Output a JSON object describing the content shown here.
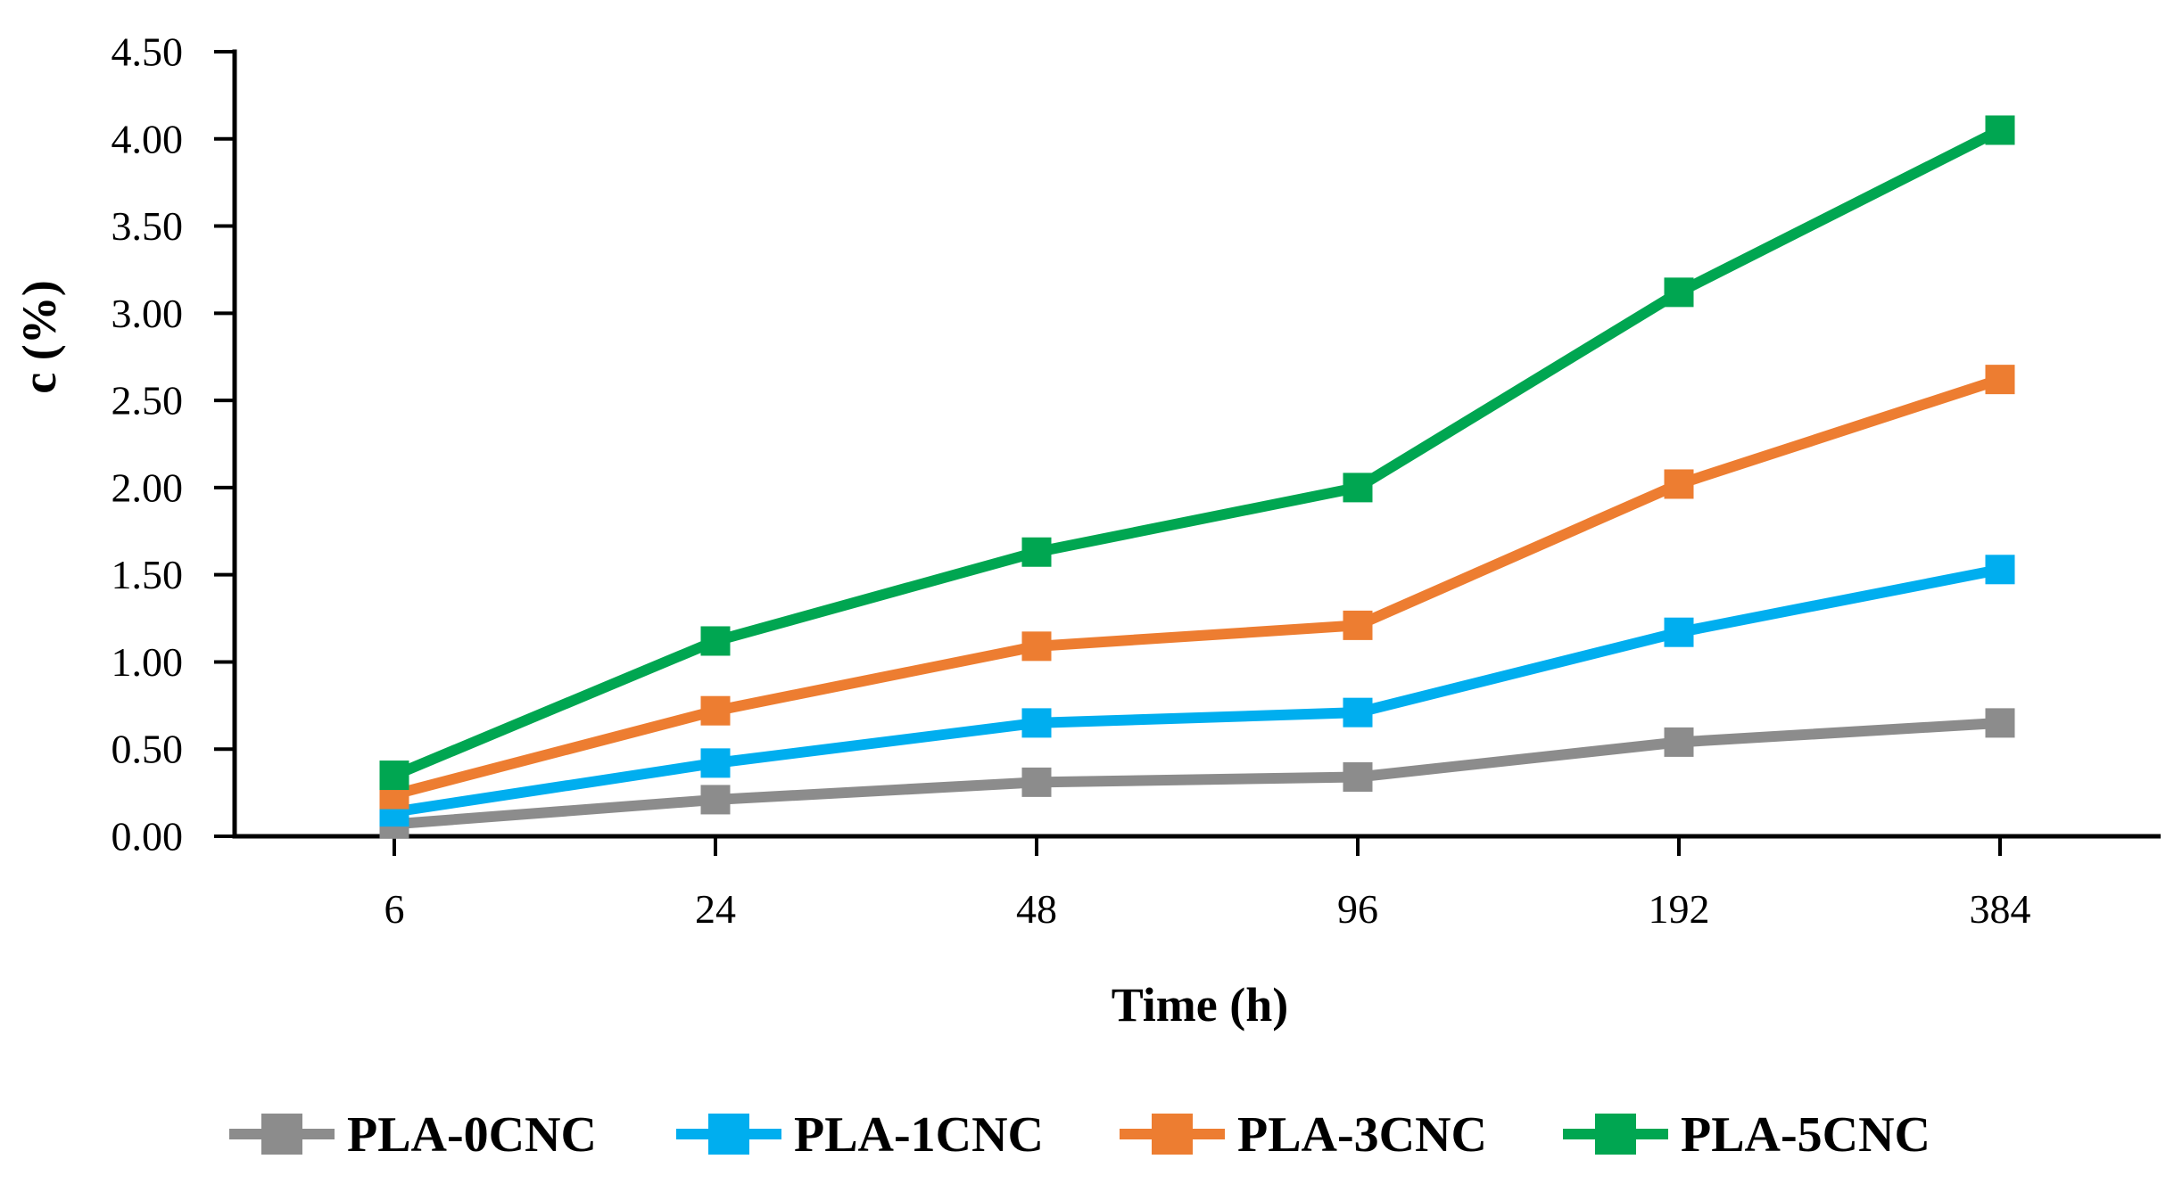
{
  "figure": {
    "background_color": "#ffffff",
    "text_color": "#000000",
    "axis_color": "#000000"
  },
  "chart_data": {
    "type": "line",
    "title": "",
    "xlabel": "Time (h)",
    "ylabel": "c (%)",
    "categories": [
      "6",
      "24",
      "48",
      "96",
      "192",
      "384"
    ],
    "x_values_hours": [
      6,
      24,
      48,
      96,
      192,
      384
    ],
    "series": [
      {
        "name": "PLA-0CNC",
        "color": "#8C8C8C",
        "values": [
          0.07,
          0.21,
          0.31,
          0.34,
          0.54,
          0.65
        ]
      },
      {
        "name": "PLA-1CNC",
        "color": "#00AEEF",
        "values": [
          0.14,
          0.42,
          0.65,
          0.71,
          1.17,
          1.53
        ]
      },
      {
        "name": "PLA-3CNC",
        "color": "#ED7D31",
        "values": [
          0.24,
          0.72,
          1.09,
          1.21,
          2.02,
          2.62
        ]
      },
      {
        "name": "PLA-5CNC",
        "color": "#00A651",
        "values": [
          0.35,
          1.12,
          1.63,
          2.0,
          3.12,
          4.05
        ]
      }
    ],
    "ylim": [
      0,
      4.5
    ],
    "ytick_step": 0.5,
    "ytick_labels": [
      "0.00",
      "0.50",
      "1.00",
      "1.50",
      "2.00",
      "2.50",
      "3.00",
      "3.50",
      "4.00",
      "4.50"
    ],
    "grid": false,
    "marker": "square",
    "legend_position": "bottom",
    "legend_entries": [
      "PLA-0CNC",
      "PLA-1CNC",
      "PLA-3CNC",
      "PLA-5CNC"
    ]
  }
}
